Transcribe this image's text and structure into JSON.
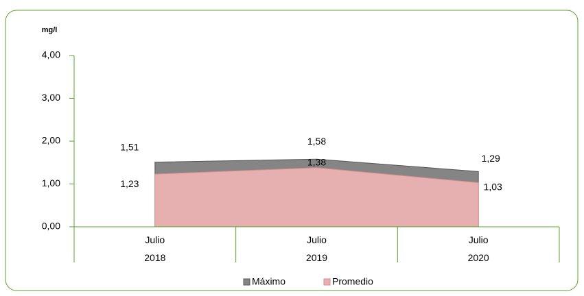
{
  "chart_data": {
    "type": "area",
    "y_axis_label": "mg/l",
    "categories": [
      "Julio 2018",
      "Julio 2019",
      "Julio 2020"
    ],
    "series": [
      {
        "name": "Máximo",
        "color": "#858585",
        "values": [
          1.51,
          1.58,
          1.29
        ],
        "value_labels": [
          "1,51",
          "1,58",
          "1,29"
        ]
      },
      {
        "name": "Promedio",
        "color": "#e6b0b0",
        "values": [
          1.23,
          1.38,
          1.03
        ],
        "value_labels": [
          "1,23",
          "1,38",
          "1,03"
        ]
      }
    ],
    "ylim": [
      0,
      4
    ],
    "yticks": [
      {
        "value": 0,
        "label": "0,00"
      },
      {
        "value": 1,
        "label": "1,00"
      },
      {
        "value": 2,
        "label": "2,00"
      },
      {
        "value": 3,
        "label": "3,00"
      },
      {
        "value": 4,
        "label": "4,00"
      }
    ],
    "legend": "bottom",
    "grid": false
  }
}
